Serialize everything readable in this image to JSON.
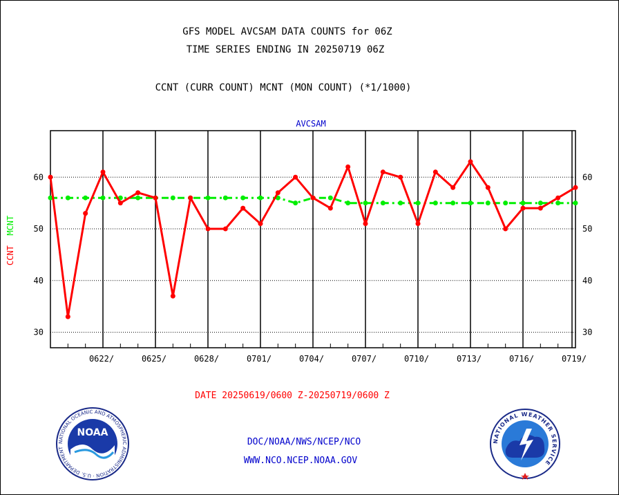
{
  "header": {
    "title_line1": "GFS MODEL AVCSAM DATA COUNTS for 06Z",
    "title_line2": "TIME SERIES ENDING IN 20250719 06Z",
    "subtitle": "CCNT (CURR COUNT) MCNT (MON COUNT) (*1/1000)",
    "panel_label": "AVCSAM"
  },
  "footer": {
    "date_range": "DATE 20250619/0600 Z-20250719/0600 Z",
    "org_path": "DOC/NOAA/NWS/NCEP/NCO",
    "website": "WWW.NCO.NCEP.NOAA.GOV"
  },
  "logos": {
    "noaa_text": "NOAA",
    "noaa_ring": "NATIONAL OCEANIC AND ATMOSPHERIC ADMINISTRATION · U.S. DEPARTMENT OF COMMERCE ·",
    "nws_ring": "NATIONAL WEATHER SERVICE"
  },
  "colors": {
    "ccnt": "#ff0000",
    "mcnt": "#00ee00",
    "panel_label": "#0000cc",
    "footer": "#0000cc",
    "date_range": "#ff0000"
  },
  "chart_data": {
    "type": "line",
    "title": "GFS MODEL AVCSAM DATA COUNTS for 06Z",
    "ylabel_parts": [
      {
        "text": "CCNT",
        "color": "#ff0000"
      },
      {
        "text": "MCNT",
        "color": "#00ee00"
      }
    ],
    "ylim": [
      27,
      69
    ],
    "yticks": [
      30,
      40,
      50,
      60
    ],
    "y_gridlines": "dotted",
    "x_start": "2025-06-19",
    "x_days": 30,
    "x_tick_labels": [
      "0622/",
      "0625/",
      "0628/",
      "0701/",
      "0704/",
      "0707/",
      "0710/",
      "0713/",
      "0716/",
      "0719/"
    ],
    "x_tick_dates": [
      "2025-06-22",
      "2025-06-25",
      "2025-06-28",
      "2025-07-01",
      "2025-07-04",
      "2025-07-07",
      "2025-07-10",
      "2025-07-13",
      "2025-07-16",
      "2025-07-19"
    ],
    "series": [
      {
        "name": "CCNT",
        "color": "#ff0000",
        "style": "solid",
        "values": [
          60,
          33,
          53,
          61,
          55,
          57,
          56,
          37,
          56,
          50,
          50,
          54,
          51,
          57,
          60,
          56,
          54,
          62,
          51,
          61,
          60,
          51,
          61,
          58,
          63,
          58,
          50,
          54,
          54,
          56,
          58
        ]
      },
      {
        "name": "MCNT",
        "color": "#00ee00",
        "style": "dash-dot",
        "values": [
          56,
          56,
          56,
          56,
          56,
          56,
          56,
          56,
          56,
          56,
          56,
          56,
          56,
          56,
          55,
          56,
          56,
          55,
          55,
          55,
          55,
          55,
          55,
          55,
          55,
          55,
          55,
          55,
          55,
          55,
          55
        ]
      }
    ]
  }
}
